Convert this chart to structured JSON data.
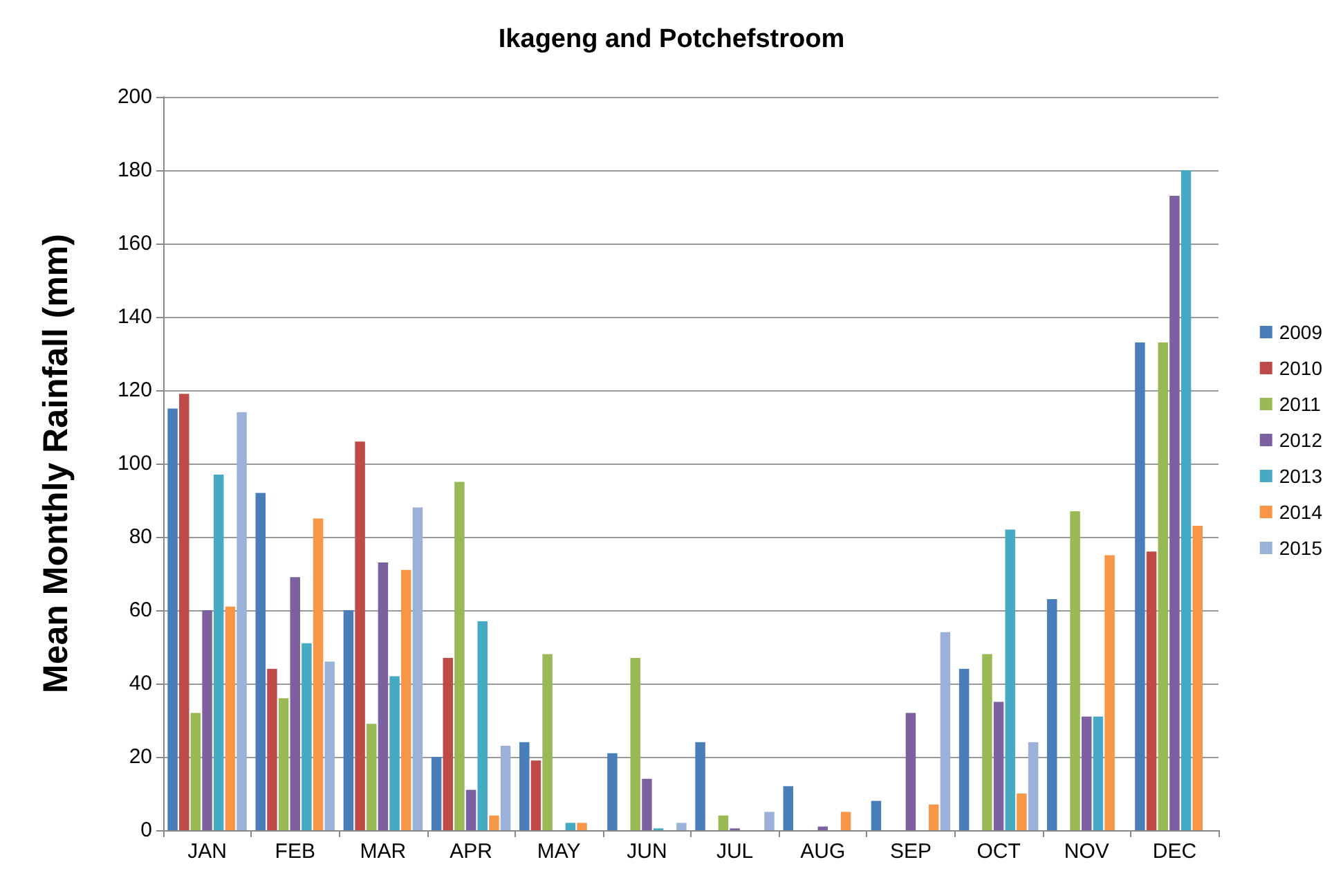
{
  "chart_data": {
    "type": "bar",
    "title": "Ikageng and Potchefstroom",
    "ylabel": "Mean Monthly Rainfall (mm)",
    "categories": [
      "JAN",
      "FEB",
      "MAR",
      "APR",
      "MAY",
      "JUN",
      "JUL",
      "AUG",
      "SEP",
      "OCT",
      "NOV",
      "DEC"
    ],
    "series": [
      {
        "name": "2009",
        "color": "#4a7ebb",
        "values": [
          115,
          92,
          60,
          20,
          24,
          21,
          24,
          12,
          8,
          44,
          63,
          133
        ]
      },
      {
        "name": "2010",
        "color": "#be4b48",
        "values": [
          119,
          44,
          106,
          47,
          19,
          null,
          null,
          null,
          null,
          null,
          null,
          76
        ]
      },
      {
        "name": "2011",
        "color": "#98b954",
        "values": [
          32,
          36,
          29,
          95,
          48,
          47,
          4,
          null,
          null,
          48,
          87,
          133
        ]
      },
      {
        "name": "2012",
        "color": "#7d60a0",
        "values": [
          60,
          69,
          73,
          11,
          null,
          14,
          0.5,
          1,
          32,
          35,
          31,
          173
        ]
      },
      {
        "name": "2013",
        "color": "#46aac5",
        "values": [
          97,
          51,
          42,
          57,
          2,
          0.5,
          null,
          null,
          null,
          82,
          31,
          180
        ]
      },
      {
        "name": "2014",
        "color": "#f79646",
        "values": [
          61,
          85,
          71,
          4,
          2,
          null,
          null,
          5,
          7,
          10,
          75,
          83
        ]
      },
      {
        "name": "2015",
        "color": "#9bb1d9",
        "values": [
          114,
          46,
          88,
          23,
          null,
          2,
          5,
          null,
          54,
          24,
          null,
          null
        ]
      }
    ],
    "ylim": [
      0,
      200
    ],
    "yticks": [
      0,
      20,
      40,
      60,
      80,
      100,
      120,
      140,
      160,
      180,
      200
    ],
    "grid": "y",
    "legend": "right"
  }
}
